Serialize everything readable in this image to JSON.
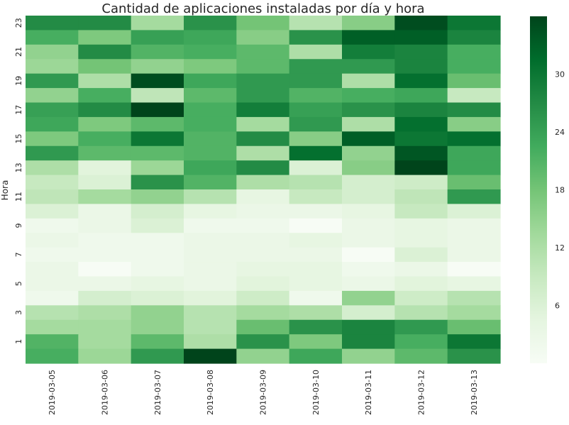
{
  "chart_data": {
    "type": "heatmap",
    "title": "Cantidad de aplicaciones instaladas por día y hora",
    "xlabel": "",
    "ylabel": "Hora",
    "x": [
      "2019-03-05",
      "2019-03-06",
      "2019-03-07",
      "2019-03-08",
      "2019-03-09",
      "2019-03-10",
      "2019-03-11",
      "2019-03-12",
      "2019-03-13"
    ],
    "y_order": "top-to-bottom",
    "y": [
      23,
      22,
      21,
      20,
      19,
      18,
      17,
      16,
      15,
      14,
      13,
      12,
      11,
      10,
      9,
      8,
      7,
      6,
      5,
      4,
      3,
      2,
      1,
      0
    ],
    "y_tick_labels": [
      "23",
      "21",
      "19",
      "17",
      "15",
      "13",
      "11",
      "9",
      "7",
      "5",
      "3",
      "1"
    ],
    "values": [
      [
        27,
        27,
        13,
        26,
        18,
        11,
        16,
        35,
        30
      ],
      [
        22,
        17,
        24,
        23,
        16,
        26,
        33,
        33,
        28
      ],
      [
        15,
        27,
        21,
        22,
        20,
        12,
        29,
        28,
        22
      ],
      [
        14,
        18,
        15,
        17,
        20,
        25,
        25,
        28,
        22
      ],
      [
        25,
        12,
        35,
        23,
        25,
        25,
        12,
        31,
        19
      ],
      [
        15,
        22,
        10,
        20,
        25,
        21,
        22,
        23,
        9
      ],
      [
        24,
        27,
        36,
        22,
        29,
        24,
        26,
        28,
        27
      ],
      [
        23,
        17,
        20,
        22,
        13,
        25,
        12,
        31,
        16
      ],
      [
        17,
        22,
        30,
        21,
        27,
        16,
        33,
        30,
        31
      ],
      [
        25,
        20,
        20,
        21,
        12,
        31,
        15,
        34,
        23
      ],
      [
        12,
        5,
        14,
        23,
        27,
        6,
        16,
        36,
        23
      ],
      [
        9,
        6,
        26,
        21,
        12,
        11,
        7,
        8,
        19
      ],
      [
        10,
        13,
        15,
        11,
        4,
        9,
        7,
        10,
        25
      ],
      [
        6,
        3,
        7,
        4,
        3,
        3,
        4,
        9,
        6
      ],
      [
        2,
        3,
        6,
        2,
        2,
        0,
        3,
        4,
        3
      ],
      [
        3,
        2,
        2,
        3,
        3,
        4,
        3,
        4,
        3
      ],
      [
        2,
        2,
        2,
        3,
        3,
        3,
        0,
        6,
        3
      ],
      [
        3,
        0,
        2,
        3,
        4,
        4,
        2,
        3,
        0
      ],
      [
        3,
        3,
        4,
        3,
        5,
        4,
        3,
        5,
        4
      ],
      [
        2,
        7,
        6,
        5,
        8,
        2,
        15,
        8,
        11
      ],
      [
        11,
        12,
        15,
        11,
        13,
        12,
        7,
        11,
        13
      ],
      [
        13,
        13,
        15,
        11,
        19,
        26,
        28,
        25,
        19
      ],
      [
        21,
        13,
        20,
        12,
        26,
        17,
        28,
        22,
        30
      ],
      [
        22,
        14,
        25,
        36,
        15,
        23,
        15,
        20,
        26
      ]
    ],
    "vmin": 0,
    "vmax": 36,
    "colorbar_ticks": [
      6,
      12,
      18,
      24,
      30
    ],
    "colormap": [
      "#f7fcf5",
      "#e5f5e0",
      "#c7e9c0",
      "#a1d99b",
      "#74c476",
      "#41ab5d",
      "#238b45",
      "#006d2c",
      "#00441b"
    ],
    "grid": false,
    "legend": "colorbar-right"
  }
}
